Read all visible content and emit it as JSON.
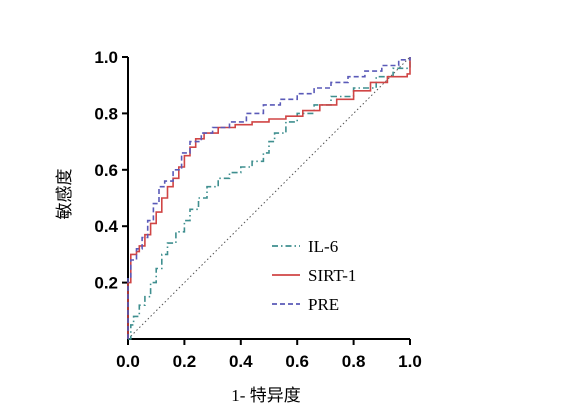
{
  "chart_data": {
    "type": "line",
    "title": "",
    "xlabel": "1- 特异度",
    "ylabel": "敏感度",
    "xlim": [
      0,
      1
    ],
    "ylim": [
      0,
      1
    ],
    "x_ticks": [
      "0.0",
      "0.2",
      "0.4",
      "0.6",
      "0.8",
      "1.0"
    ],
    "y_ticks": [
      "0.2",
      "0.4",
      "0.6",
      "0.8",
      "1.0"
    ],
    "grid": false,
    "legend_position": "lower-right",
    "reference_line": {
      "style": "dotted",
      "color": "#555555",
      "points": [
        [
          0,
          0
        ],
        [
          1,
          1
        ]
      ]
    },
    "series": [
      {
        "name": "IL-6",
        "color": "#3f8f8f",
        "dash": "dash-dot",
        "points": [
          [
            0,
            0
          ],
          [
            0.01,
            0.05
          ],
          [
            0.02,
            0.08
          ],
          [
            0.04,
            0.12
          ],
          [
            0.06,
            0.15
          ],
          [
            0.08,
            0.2
          ],
          [
            0.1,
            0.25
          ],
          [
            0.12,
            0.3
          ],
          [
            0.14,
            0.34
          ],
          [
            0.17,
            0.38
          ],
          [
            0.2,
            0.42
          ],
          [
            0.22,
            0.46
          ],
          [
            0.25,
            0.5
          ],
          [
            0.28,
            0.54
          ],
          [
            0.32,
            0.57
          ],
          [
            0.36,
            0.59
          ],
          [
            0.4,
            0.61
          ],
          [
            0.44,
            0.63
          ],
          [
            0.48,
            0.66
          ],
          [
            0.5,
            0.7
          ],
          [
            0.52,
            0.73
          ],
          [
            0.56,
            0.77
          ],
          [
            0.6,
            0.8
          ],
          [
            0.66,
            0.83
          ],
          [
            0.72,
            0.86
          ],
          [
            0.8,
            0.89
          ],
          [
            0.88,
            0.93
          ],
          [
            0.94,
            0.96
          ],
          [
            1,
            1
          ]
        ]
      },
      {
        "name": "SIRT-1",
        "color": "#d04545",
        "dash": "solid",
        "points": [
          [
            0,
            0
          ],
          [
            0.0,
            0.2
          ],
          [
            0.01,
            0.27
          ],
          [
            0.01,
            0.3
          ],
          [
            0.03,
            0.31
          ],
          [
            0.04,
            0.33
          ],
          [
            0.06,
            0.37
          ],
          [
            0.08,
            0.41
          ],
          [
            0.1,
            0.45
          ],
          [
            0.12,
            0.5
          ],
          [
            0.14,
            0.54
          ],
          [
            0.16,
            0.57
          ],
          [
            0.18,
            0.61
          ],
          [
            0.2,
            0.65
          ],
          [
            0.22,
            0.68
          ],
          [
            0.24,
            0.71
          ],
          [
            0.27,
            0.73
          ],
          [
            0.32,
            0.75
          ],
          [
            0.38,
            0.76
          ],
          [
            0.44,
            0.77
          ],
          [
            0.5,
            0.78
          ],
          [
            0.56,
            0.79
          ],
          [
            0.62,
            0.81
          ],
          [
            0.68,
            0.83
          ],
          [
            0.74,
            0.85
          ],
          [
            0.8,
            0.88
          ],
          [
            0.86,
            0.91
          ],
          [
            0.92,
            0.93
          ],
          [
            0.99,
            0.94
          ],
          [
            1,
            0.98
          ],
          [
            1,
            1
          ]
        ]
      },
      {
        "name": "PRE",
        "color": "#5a5ab8",
        "dash": "dash",
        "points": [
          [
            0,
            0
          ],
          [
            0.0,
            0.22
          ],
          [
            0.01,
            0.28
          ],
          [
            0.03,
            0.32
          ],
          [
            0.05,
            0.36
          ],
          [
            0.07,
            0.42
          ],
          [
            0.09,
            0.48
          ],
          [
            0.11,
            0.54
          ],
          [
            0.13,
            0.56
          ],
          [
            0.16,
            0.6
          ],
          [
            0.19,
            0.66
          ],
          [
            0.22,
            0.7
          ],
          [
            0.26,
            0.73
          ],
          [
            0.3,
            0.75
          ],
          [
            0.36,
            0.77
          ],
          [
            0.42,
            0.8
          ],
          [
            0.48,
            0.83
          ],
          [
            0.54,
            0.85
          ],
          [
            0.6,
            0.87
          ],
          [
            0.66,
            0.89
          ],
          [
            0.72,
            0.91
          ],
          [
            0.78,
            0.93
          ],
          [
            0.84,
            0.95
          ],
          [
            0.9,
            0.97
          ],
          [
            0.96,
            0.99
          ],
          [
            1,
            1
          ]
        ]
      }
    ]
  }
}
